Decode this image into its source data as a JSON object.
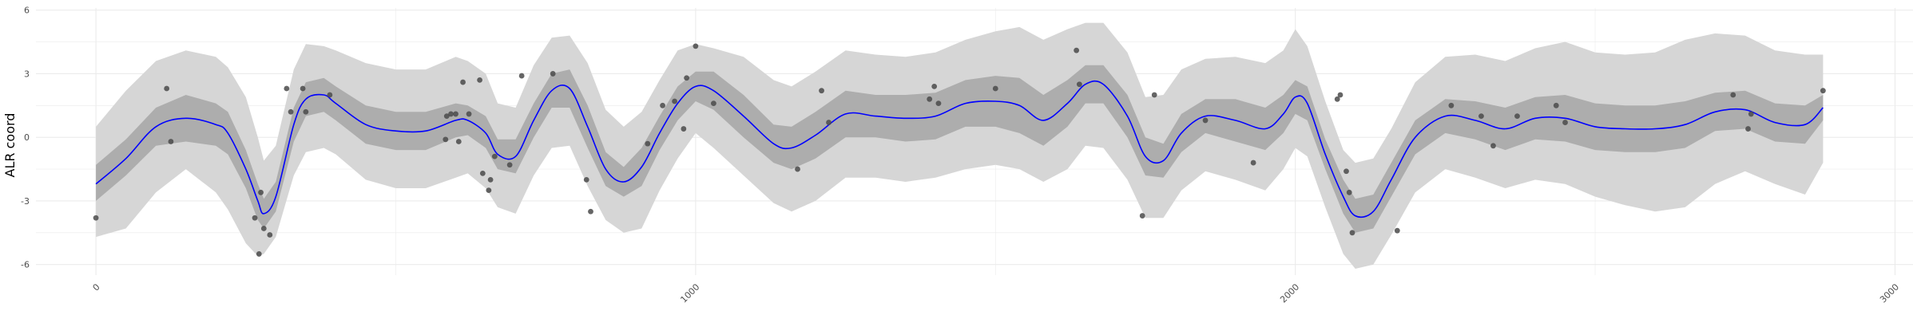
{
  "chart_data": {
    "type": "line",
    "title": "",
    "xlabel": "",
    "ylabel": "ALR coord",
    "xlim": [
      -100,
      3030
    ],
    "ylim": [
      -6.5,
      6.1
    ],
    "x_ticks": [
      0,
      1000,
      2000,
      3000
    ],
    "x_tick_labels": [
      "0",
      "1000",
      "2000",
      "3000"
    ],
    "y_ticks": [
      -6,
      -3,
      0,
      3,
      6
    ],
    "y_tick_labels": [
      "-6",
      "-3",
      "0",
      "3",
      "6"
    ],
    "grid": true,
    "legend": "none",
    "colors": {
      "mean_line": "#0000ff",
      "inner_band": "#adadad",
      "outer_band": "#d6d6d6",
      "points": "#4a4a4a",
      "grid": "#ebebeb"
    },
    "mean": {
      "name": "",
      "x": [
        0,
        50,
        100,
        150,
        200,
        220,
        250,
        270,
        280,
        300,
        330,
        350,
        380,
        400,
        450,
        500,
        550,
        600,
        620,
        650,
        670,
        700,
        730,
        760,
        790,
        820,
        850,
        880,
        910,
        940,
        970,
        1000,
        1030,
        1080,
        1130,
        1160,
        1200,
        1250,
        1300,
        1350,
        1400,
        1450,
        1500,
        1540,
        1580,
        1620,
        1650,
        1680,
        1720,
        1750,
        1780,
        1810,
        1850,
        1900,
        1950,
        1980,
        2000,
        2020,
        2050,
        2080,
        2100,
        2130,
        2160,
        2200,
        2250,
        2300,
        2350,
        2400,
        2450,
        2500,
        2550,
        2600,
        2650,
        2700,
        2750,
        2800,
        2850,
        2880
      ],
      "y": [
        -2.2,
        -1.0,
        0.5,
        0.9,
        0.6,
        0.2,
        -1.5,
        -3.0,
        -3.6,
        -2.8,
        0.6,
        1.8,
        2.0,
        1.6,
        0.6,
        0.3,
        0.3,
        0.8,
        0.8,
        0.2,
        -0.8,
        -0.9,
        0.8,
        2.2,
        2.3,
        0.5,
        -1.5,
        -2.1,
        -1.4,
        0.2,
        1.6,
        2.4,
        2.2,
        1.0,
        -0.3,
        -0.5,
        0.1,
        1.1,
        1.0,
        0.9,
        1.0,
        1.6,
        1.7,
        1.5,
        0.8,
        1.6,
        2.5,
        2.5,
        1.0,
        -0.9,
        -1.1,
        0.2,
        1.0,
        0.8,
        0.4,
        1.1,
        1.9,
        1.6,
        -0.8,
        -2.8,
        -3.7,
        -3.5,
        -2.0,
        0.0,
        1.0,
        0.8,
        0.4,
        0.9,
        0.9,
        0.5,
        0.4,
        0.4,
        0.6,
        1.2,
        1.3,
        0.7,
        0.6,
        1.4
      ]
    },
    "inner_band": {
      "x": [
        0,
        50,
        100,
        150,
        200,
        220,
        250,
        270,
        280,
        300,
        330,
        350,
        380,
        400,
        450,
        500,
        550,
        600,
        620,
        650,
        670,
        700,
        730,
        760,
        790,
        820,
        850,
        880,
        910,
        940,
        970,
        1000,
        1030,
        1080,
        1130,
        1160,
        1200,
        1250,
        1300,
        1350,
        1400,
        1450,
        1500,
        1540,
        1580,
        1620,
        1650,
        1680,
        1720,
        1750,
        1780,
        1810,
        1850,
        1900,
        1950,
        1980,
        2000,
        2020,
        2050,
        2080,
        2100,
        2130,
        2160,
        2200,
        2250,
        2300,
        2350,
        2400,
        2450,
        2500,
        2550,
        2600,
        2650,
        2700,
        2750,
        2800,
        2850,
        2880
      ],
      "lower": [
        -3.0,
        -1.8,
        -0.4,
        -0.2,
        -0.4,
        -0.8,
        -2.4,
        -3.9,
        -4.3,
        -3.5,
        -0.2,
        1.0,
        1.2,
        0.8,
        -0.3,
        -0.6,
        -0.6,
        0.0,
        0.1,
        -0.5,
        -1.5,
        -1.7,
        0.0,
        1.4,
        1.4,
        -0.5,
        -2.3,
        -2.8,
        -2.3,
        -0.6,
        0.8,
        1.7,
        1.3,
        0.0,
        -1.2,
        -1.5,
        -1.0,
        0.0,
        0.0,
        -0.2,
        -0.1,
        0.5,
        0.5,
        0.2,
        -0.4,
        0.5,
        1.6,
        1.6,
        0.0,
        -1.8,
        -1.9,
        -0.7,
        0.2,
        -0.2,
        -0.6,
        0.2,
        1.1,
        0.8,
        -1.5,
        -3.6,
        -4.5,
        -4.3,
        -2.8,
        -0.8,
        0.2,
        -0.1,
        -0.6,
        -0.1,
        -0.2,
        -0.6,
        -0.7,
        -0.7,
        -0.5,
        0.3,
        0.4,
        -0.2,
        -0.3,
        0.8
      ],
      "upper": [
        -1.3,
        -0.1,
        1.4,
        2.0,
        1.6,
        1.2,
        -0.6,
        -2.2,
        -2.9,
        -2.1,
        1.4,
        2.6,
        2.8,
        2.4,
        1.5,
        1.2,
        1.2,
        1.6,
        1.5,
        1.0,
        -0.1,
        -0.1,
        1.6,
        3.0,
        3.2,
        1.5,
        -0.7,
        -1.4,
        -0.5,
        1.0,
        2.4,
        3.1,
        3.1,
        2.0,
        0.6,
        0.5,
        1.2,
        2.2,
        2.0,
        2.0,
        2.1,
        2.7,
        2.9,
        2.8,
        2.0,
        2.7,
        3.4,
        3.4,
        2.0,
        0.0,
        -0.3,
        1.1,
        1.8,
        1.8,
        1.4,
        2.0,
        2.7,
        2.4,
        -0.1,
        -2.0,
        -2.9,
        -2.7,
        -1.2,
        0.8,
        1.8,
        1.7,
        1.4,
        1.9,
        2.0,
        1.6,
        1.5,
        1.5,
        1.7,
        2.1,
        2.2,
        1.6,
        1.5,
        2.0
      ]
    },
    "outer_band": {
      "x": [
        0,
        50,
        100,
        150,
        200,
        220,
        250,
        270,
        280,
        300,
        330,
        350,
        380,
        400,
        450,
        500,
        550,
        600,
        620,
        650,
        670,
        700,
        730,
        760,
        790,
        820,
        850,
        880,
        910,
        940,
        970,
        1000,
        1030,
        1080,
        1130,
        1160,
        1200,
        1250,
        1300,
        1350,
        1400,
        1450,
        1500,
        1540,
        1580,
        1620,
        1650,
        1680,
        1720,
        1750,
        1780,
        1810,
        1850,
        1900,
        1950,
        1980,
        2000,
        2020,
        2050,
        2080,
        2100,
        2130,
        2160,
        2200,
        2250,
        2300,
        2350,
        2400,
        2450,
        2500,
        2550,
        2600,
        2650,
        2700,
        2750,
        2800,
        2850,
        2880
      ],
      "lower": [
        -4.7,
        -4.3,
        -2.6,
        -1.5,
        -2.6,
        -3.4,
        -5.0,
        -5.6,
        -5.5,
        -4.7,
        -1.8,
        -0.7,
        -0.5,
        -0.8,
        -2.0,
        -2.4,
        -2.4,
        -1.9,
        -1.7,
        -2.4,
        -3.3,
        -3.6,
        -1.8,
        -0.5,
        -0.4,
        -2.3,
        -3.9,
        -4.5,
        -4.3,
        -2.5,
        -1.0,
        0.2,
        -0.5,
        -1.8,
        -3.1,
        -3.5,
        -3.0,
        -1.9,
        -1.9,
        -2.1,
        -1.9,
        -1.5,
        -1.3,
        -1.5,
        -2.1,
        -1.5,
        -0.4,
        -0.5,
        -2.0,
        -3.8,
        -3.8,
        -2.5,
        -1.6,
        -2.0,
        -2.5,
        -1.5,
        -0.5,
        -0.9,
        -3.3,
        -5.5,
        -6.2,
        -6.0,
        -4.6,
        -2.6,
        -1.5,
        -1.9,
        -2.4,
        -2.0,
        -2.2,
        -2.8,
        -3.2,
        -3.5,
        -3.3,
        -2.2,
        -1.6,
        -2.2,
        -2.7,
        -1.2
      ],
      "upper": [
        0.5,
        2.2,
        3.6,
        4.1,
        3.8,
        3.3,
        1.9,
        0.0,
        -1.1,
        -0.4,
        3.2,
        4.4,
        4.3,
        4.1,
        3.5,
        3.2,
        3.2,
        3.8,
        3.6,
        3.0,
        1.6,
        1.4,
        3.4,
        4.7,
        4.8,
        3.5,
        1.3,
        0.5,
        1.2,
        2.7,
        4.1,
        4.4,
        4.2,
        3.8,
        2.7,
        2.4,
        3.1,
        4.1,
        3.9,
        3.8,
        4.0,
        4.6,
        5.0,
        5.2,
        4.6,
        5.1,
        5.4,
        5.4,
        4.0,
        1.9,
        2.0,
        3.2,
        3.7,
        3.8,
        3.5,
        4.1,
        5.1,
        4.3,
        1.7,
        -0.6,
        -1.2,
        -1.0,
        0.4,
        2.6,
        3.8,
        3.9,
        3.6,
        4.2,
        4.5,
        4.0,
        3.9,
        4.0,
        4.6,
        4.9,
        4.8,
        4.1,
        3.9,
        3.9
      ]
    },
    "points": {
      "x": [
        0,
        118,
        125,
        265,
        272,
        275,
        280,
        290,
        318,
        325,
        345,
        350,
        390,
        583,
        585,
        592,
        600,
        605,
        612,
        622,
        640,
        645,
        655,
        658,
        665,
        690,
        710,
        762,
        818,
        825,
        920,
        945,
        965,
        980,
        985,
        1000,
        1030,
        1170,
        1210,
        1222,
        1390,
        1398,
        1405,
        1500,
        1635,
        1640,
        1745,
        1765,
        1850,
        1930,
        2070,
        2075,
        2085,
        2090,
        2095,
        2170,
        2260,
        2310,
        2330,
        2370,
        2435,
        2450,
        2730,
        2755,
        2760,
        2880
      ],
      "y": [
        -3.8,
        2.3,
        -0.2,
        -3.8,
        -5.5,
        -2.6,
        -4.3,
        -4.6,
        2.3,
        1.2,
        2.3,
        1.2,
        2.0,
        -0.1,
        1.0,
        1.1,
        1.1,
        -0.2,
        2.6,
        1.1,
        2.7,
        -1.7,
        -2.5,
        -2.0,
        -0.9,
        -1.3,
        2.9,
        3.0,
        -2.0,
        -3.5,
        -0.3,
        1.5,
        1.7,
        0.4,
        2.8,
        4.3,
        1.6,
        -1.5,
        2.2,
        0.7,
        1.8,
        2.4,
        1.6,
        2.3,
        4.1,
        2.5,
        -3.7,
        2.0,
        0.8,
        -1.2,
        1.8,
        2.0,
        -1.6,
        -2.6,
        -4.5,
        -4.4,
        1.5,
        1.0,
        -0.4,
        1.0,
        1.5,
        0.7,
        2.0,
        0.4,
        1.1,
        2.2
      ]
    }
  }
}
